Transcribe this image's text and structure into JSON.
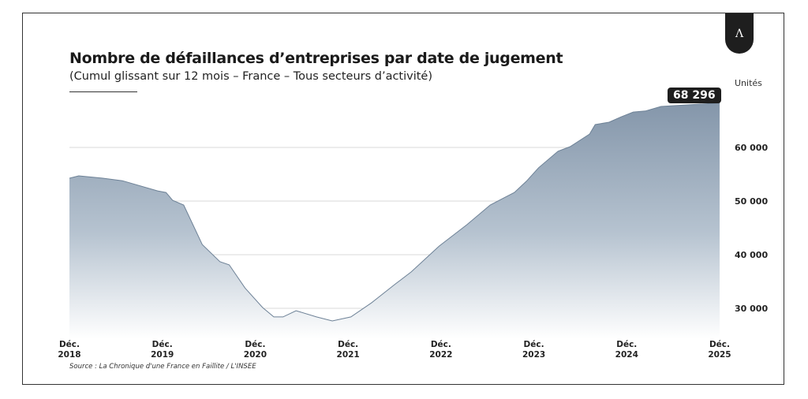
{
  "chart_data": {
    "type": "area",
    "title": "Nombre de défaillances d’entreprises par date de jugement",
    "subtitle": "(Cumul glissant sur 12 mois – France – Tous secteurs d’activité)",
    "ylabel": "Unités",
    "source": "Source : La Chronique d'une France en Faillite / L'INSEE",
    "ylim": [
      24000,
      70000
    ],
    "xlim": [
      2018.92,
      2025.92
    ],
    "yticks": [
      {
        "v": 60000,
        "label": "60 000"
      },
      {
        "v": 50000,
        "label": "50 000"
      },
      {
        "v": 40000,
        "label": "40 000"
      },
      {
        "v": 30000,
        "label": "30 000"
      }
    ],
    "xticks": [
      {
        "v": 2018.92,
        "l1": "Déc.",
        "l2": "2018"
      },
      {
        "v": 2019.92,
        "l1": "Déc.",
        "l2": "2019"
      },
      {
        "v": 2020.92,
        "l1": "Déc.",
        "l2": "2020"
      },
      {
        "v": 2021.92,
        "l1": "Déc.",
        "l2": "2021"
      },
      {
        "v": 2022.92,
        "l1": "Déc.",
        "l2": "2022"
      },
      {
        "v": 2023.92,
        "l1": "Déc.",
        "l2": "2023"
      },
      {
        "v": 2024.92,
        "l1": "Déc.",
        "l2": "2024"
      },
      {
        "v": 2025.92,
        "l1": "Déc.",
        "l2": "2025"
      }
    ],
    "x": [
      2018.92,
      2019.02,
      2019.28,
      2019.49,
      2019.87,
      2019.96,
      2020.03,
      2020.15,
      2020.35,
      2020.54,
      2020.64,
      2020.81,
      2021.0,
      2021.12,
      2021.22,
      2021.36,
      2021.58,
      2021.75,
      2021.95,
      2022.17,
      2022.43,
      2022.6,
      2022.9,
      2023.2,
      2023.45,
      2023.71,
      2023.84,
      2023.97,
      2024.18,
      2024.31,
      2024.52,
      2024.58,
      2024.73,
      2024.86,
      2024.99,
      2025.12,
      2025.29,
      2025.92
    ],
    "values": [
      54260,
      54700,
      54260,
      53800,
      51900,
      51600,
      50150,
      49260,
      41900,
      38700,
      38100,
      33800,
      30150,
      28400,
      28400,
      29560,
      28400,
      27650,
      28400,
      31000,
      34560,
      36800,
      41600,
      45600,
      49260,
      51600,
      53700,
      56200,
      59300,
      60150,
      62500,
      64260,
      64700,
      65700,
      66600,
      66800,
      67650,
      68296
    ],
    "last_value_label": "68 296",
    "color": "#8a9db1"
  },
  "logo": "A"
}
